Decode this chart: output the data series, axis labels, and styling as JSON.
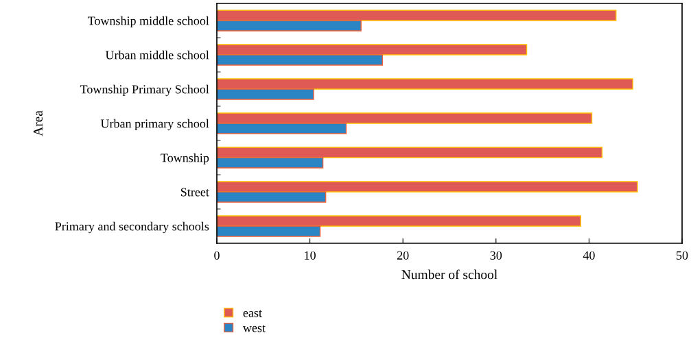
{
  "chart_data": {
    "type": "bar",
    "orientation": "horizontal",
    "xlabel": "Number of school",
    "ylabel": "Area",
    "categories": [
      "Township middle school",
      "Urban middle school",
      "Township Primary School",
      "Urban primary school",
      "Township",
      "Street",
      "Primary and secondary schools"
    ],
    "series": [
      {
        "name": "east",
        "color": "#e05a55",
        "values": [
          42.9,
          33.3,
          44.7,
          40.3,
          41.4,
          45.2,
          39.1
        ]
      },
      {
        "name": "west",
        "color": "#2b84c3",
        "values": [
          15.5,
          17.8,
          10.4,
          13.9,
          11.4,
          11.7,
          11.1
        ]
      }
    ],
    "xlim": [
      0,
      50
    ],
    "xticks": [
      0,
      10,
      20,
      30,
      40,
      50
    ],
    "grid": false,
    "legend": "bottom"
  }
}
